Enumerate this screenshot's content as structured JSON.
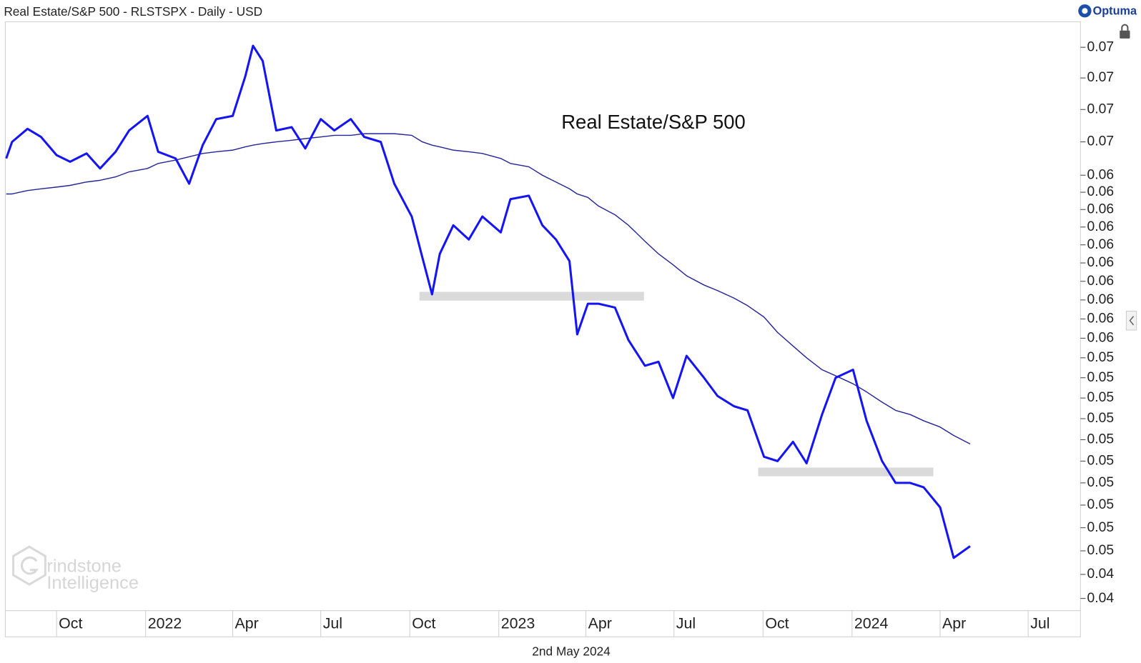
{
  "chart_data": {
    "type": "line",
    "title": "Real Estate/S&P 500 - RLSTSPX - Daily - USD",
    "brand": "Optuma",
    "date_label": "2nd May 2024",
    "watermark": [
      "rindstone",
      "Intelligence"
    ],
    "log_scale": true,
    "grid": false,
    "xlim": [
      "2021-08-09",
      "2024-08-24"
    ],
    "ylim": [
      0.0475,
      0.0787
    ],
    "xticks": [
      {
        "value": "2021-10-01",
        "label": "Oct"
      },
      {
        "value": "2022-01-01",
        "label": "2022"
      },
      {
        "value": "2022-04-01",
        "label": "Apr"
      },
      {
        "value": "2022-07-01",
        "label": "Jul"
      },
      {
        "value": "2022-10-01",
        "label": "Oct"
      },
      {
        "value": "2023-01-01",
        "label": "2023"
      },
      {
        "value": "2023-04-01",
        "label": "Apr"
      },
      {
        "value": "2023-07-01",
        "label": "Jul"
      },
      {
        "value": "2023-10-01",
        "label": "Oct"
      },
      {
        "value": "2024-01-01",
        "label": "2024"
      },
      {
        "value": "2024-04-01",
        "label": "Apr"
      },
      {
        "value": "2024-07-01",
        "label": "Jul"
      }
    ],
    "yticks": [
      {
        "value": 0.048,
        "label": "0.04"
      },
      {
        "value": 0.049,
        "label": "0.04"
      },
      {
        "value": 0.05,
        "label": "0.05"
      },
      {
        "value": 0.051,
        "label": "0.05"
      },
      {
        "value": 0.052,
        "label": "0.05"
      },
      {
        "value": 0.053,
        "label": "0.05"
      },
      {
        "value": 0.054,
        "label": "0.05"
      },
      {
        "value": 0.055,
        "label": "0.05"
      },
      {
        "value": 0.056,
        "label": "0.05"
      },
      {
        "value": 0.057,
        "label": "0.05"
      },
      {
        "value": 0.058,
        "label": "0.05"
      },
      {
        "value": 0.059,
        "label": "0.05"
      },
      {
        "value": 0.06,
        "label": "0.06"
      },
      {
        "value": 0.061,
        "label": "0.06"
      },
      {
        "value": 0.062,
        "label": "0.06"
      },
      {
        "value": 0.063,
        "label": "0.06"
      },
      {
        "value": 0.064,
        "label": "0.06"
      },
      {
        "value": 0.065,
        "label": "0.06"
      },
      {
        "value": 0.066,
        "label": "0.06"
      },
      {
        "value": 0.067,
        "label": "0.06"
      },
      {
        "value": 0.068,
        "label": "0.06"
      },
      {
        "value": 0.069,
        "label": "0.06"
      },
      {
        "value": 0.071,
        "label": "0.07"
      },
      {
        "value": 0.073,
        "label": "0.07"
      },
      {
        "value": 0.075,
        "label": "0.07"
      },
      {
        "value": 0.077,
        "label": "0.07"
      }
    ],
    "bands": [
      {
        "start": "2022-10-11",
        "end": "2023-05-31",
        "value": 0.0622
      },
      {
        "start": "2023-09-26",
        "end": "2024-03-25",
        "value": 0.0535
      }
    ],
    "band_color": "#dadada",
    "x": [
      "2021-08-10",
      "2021-08-16",
      "2021-09-01",
      "2021-09-15",
      "2021-10-01",
      "2021-10-15",
      "2021-11-01",
      "2021-11-15",
      "2021-12-01",
      "2021-12-15",
      "2022-01-03",
      "2022-01-14",
      "2022-02-01",
      "2022-02-15",
      "2022-03-01",
      "2022-03-15",
      "2022-04-01",
      "2022-04-14",
      "2022-04-22",
      "2022-05-02",
      "2022-05-16",
      "2022-06-01",
      "2022-06-15",
      "2022-07-01",
      "2022-07-15",
      "2022-08-01",
      "2022-08-15",
      "2022-09-01",
      "2022-09-15",
      "2022-10-03",
      "2022-10-14",
      "2022-10-24",
      "2022-11-01",
      "2022-11-15",
      "2022-12-01",
      "2022-12-15",
      "2023-01-03",
      "2023-01-13",
      "2023-02-01",
      "2023-02-15",
      "2023-03-01",
      "2023-03-15",
      "2023-03-23",
      "2023-04-03",
      "2023-04-14",
      "2023-05-01",
      "2023-05-15",
      "2023-06-01",
      "2023-06-15",
      "2023-06-30",
      "2023-07-14",
      "2023-08-01",
      "2023-08-15",
      "2023-09-01",
      "2023-09-15",
      "2023-10-02",
      "2023-10-16",
      "2023-11-01",
      "2023-11-15",
      "2023-12-01",
      "2023-12-15",
      "2024-01-02",
      "2024-01-16",
      "2024-02-01",
      "2024-02-15",
      "2024-03-01",
      "2024-03-15",
      "2024-04-01",
      "2024-04-15",
      "2024-05-02"
    ],
    "series": [
      {
        "name": "Real Estate/S&P 500",
        "color": "#1414f5",
        "width": 3,
        "values": [
          0.07,
          0.071,
          0.0718,
          0.0713,
          0.0702,
          0.0698,
          0.0703,
          0.0694,
          0.0704,
          0.0717,
          0.0726,
          0.0704,
          0.07,
          0.0685,
          0.0708,
          0.0724,
          0.0726,
          0.0751,
          0.0771,
          0.0761,
          0.0717,
          0.0719,
          0.0706,
          0.0724,
          0.0717,
          0.0724,
          0.0713,
          0.071,
          0.0685,
          0.0666,
          0.0643,
          0.0623,
          0.0645,
          0.0661,
          0.0653,
          0.0666,
          0.0657,
          0.0676,
          0.0678,
          0.0661,
          0.0653,
          0.0641,
          0.0602,
          0.0618,
          0.0618,
          0.0616,
          0.0599,
          0.0586,
          0.0588,
          0.057,
          0.0591,
          0.058,
          0.0571,
          0.0566,
          0.0564,
          0.0542,
          0.054,
          0.0549,
          0.0539,
          0.0562,
          0.058,
          0.0584,
          0.0559,
          0.054,
          0.053,
          0.053,
          0.0528,
          0.0519,
          0.0497,
          0.0502
        ]
      },
      {
        "color": "#25259a",
        "width": 1.4,
        "values": [
          0.0679,
          0.0679,
          0.0681,
          0.0682,
          0.0683,
          0.0684,
          0.0686,
          0.0687,
          0.0689,
          0.0692,
          0.0694,
          0.0697,
          0.0699,
          0.0701,
          0.0703,
          0.0704,
          0.0705,
          0.0707,
          0.0708,
          0.0709,
          0.071,
          0.0711,
          0.0712,
          0.0713,
          0.0714,
          0.0714,
          0.0715,
          0.0715,
          0.0715,
          0.0714,
          0.071,
          0.0708,
          0.0707,
          0.0705,
          0.0704,
          0.0703,
          0.07,
          0.0697,
          0.0695,
          0.069,
          0.0686,
          0.0682,
          0.0679,
          0.0677,
          0.0672,
          0.0667,
          0.0661,
          0.0652,
          0.0645,
          0.0639,
          0.0633,
          0.0628,
          0.0625,
          0.0621,
          0.0617,
          0.0611,
          0.0603,
          0.0596,
          0.059,
          0.0584,
          0.0581,
          0.0577,
          0.0573,
          0.0568,
          0.0564,
          0.0562,
          0.0559,
          0.0556,
          0.0552,
          0.0548
        ]
      }
    ]
  }
}
